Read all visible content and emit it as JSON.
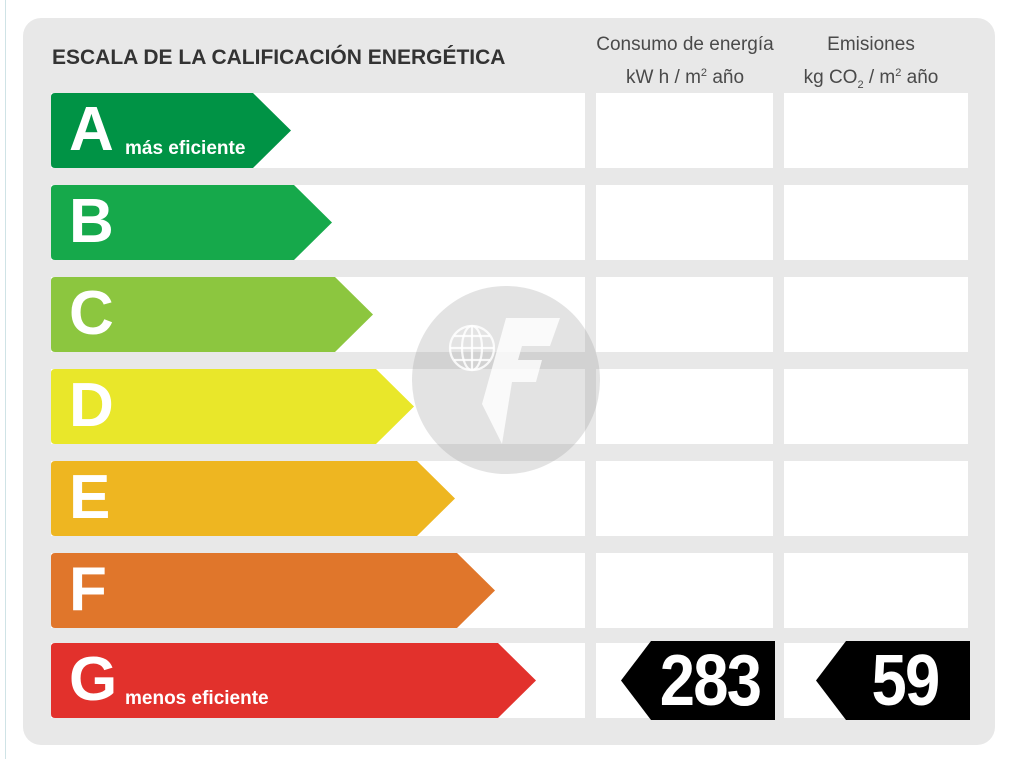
{
  "title": "ESCALA DE LA CALIFICACIÓN ENERGÉTICA",
  "columns": {
    "consumo": {
      "line1": "Consumo de energía",
      "line2_pre": "kW h  / m",
      "line2_sup": "2",
      "line2_post": " año"
    },
    "emisiones": {
      "line1": "Emisiones",
      "line2_pre": "kg CO",
      "line2_sub": "2",
      "line2_mid": "  / m",
      "line2_sup": "2",
      "line2_post": " año"
    }
  },
  "ratings": [
    {
      "letter": "A",
      "sublabel": "más eficiente",
      "color": "#009345"
    },
    {
      "letter": "B",
      "sublabel": "",
      "color": "#16a94b"
    },
    {
      "letter": "C",
      "sublabel": "",
      "color": "#8cc63f"
    },
    {
      "letter": "D",
      "sublabel": "",
      "color": "#e9e72a"
    },
    {
      "letter": "E",
      "sublabel": "",
      "color": "#eeb621"
    },
    {
      "letter": "F",
      "sublabel": "",
      "color": "#e0762b"
    },
    {
      "letter": "G",
      "sublabel": "menos eficiente",
      "color": "#e2312c"
    }
  ],
  "result": {
    "rating": "G",
    "consumo_value": "283",
    "emisiones_value": "59",
    "badge_color": "#000000"
  },
  "watermark": {
    "icon": "logo-watermark-icon"
  }
}
